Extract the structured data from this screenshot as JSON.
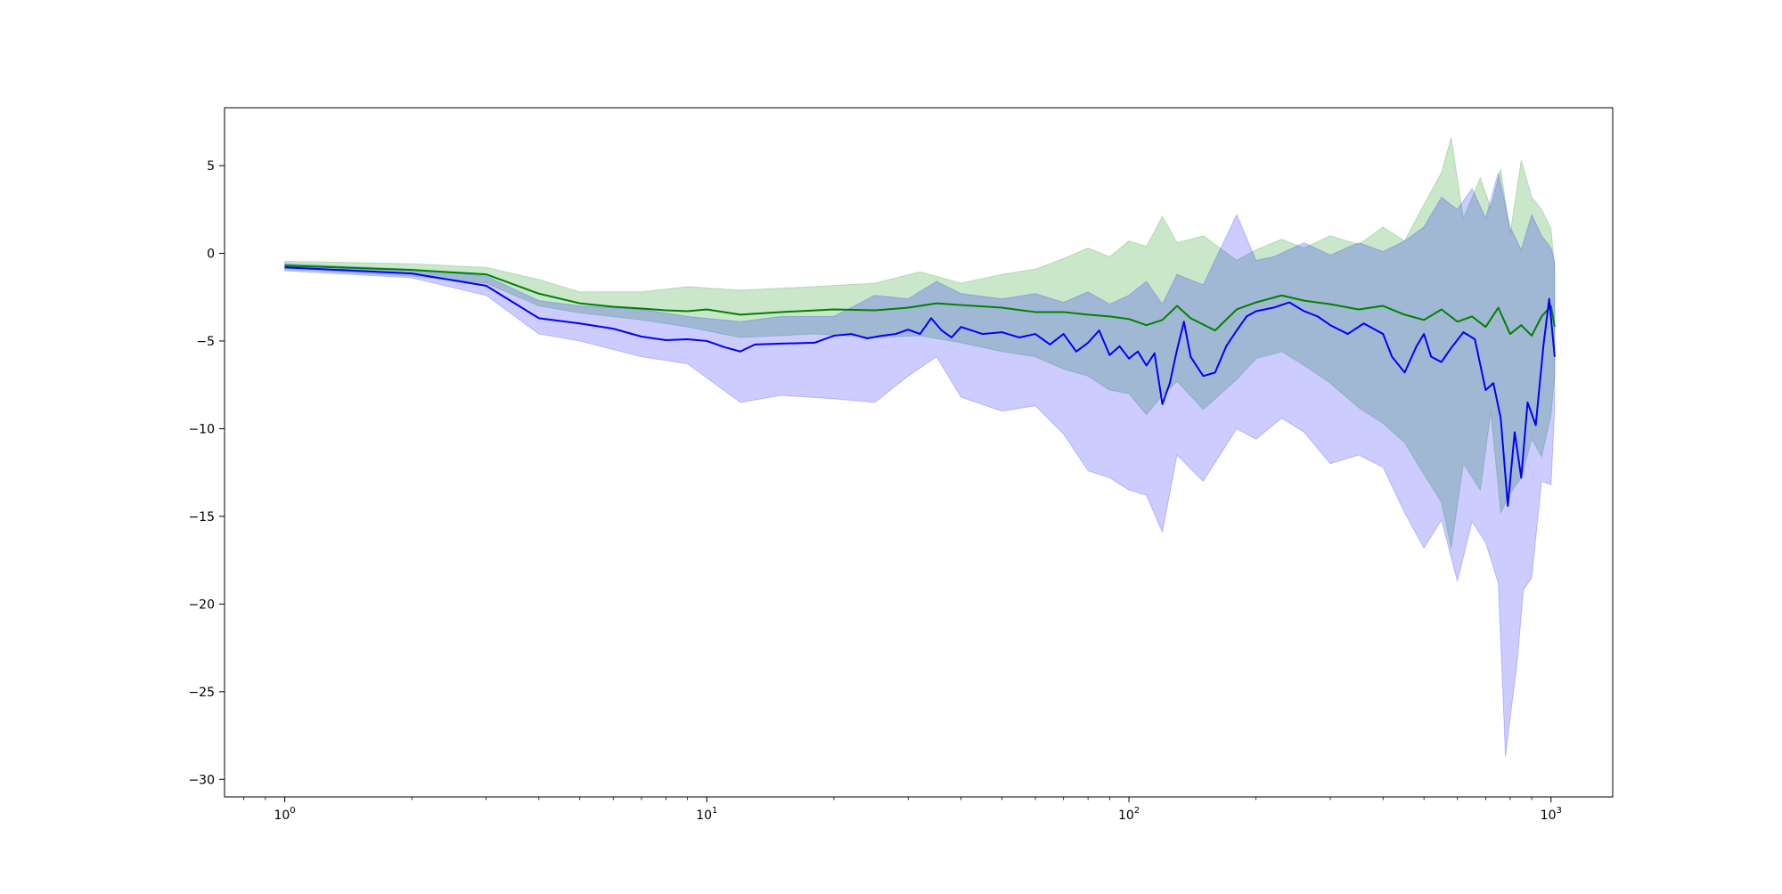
{
  "chart_data": {
    "type": "line",
    "title": "",
    "xlabel": "",
    "ylabel": "",
    "xscale": "log",
    "xlim": [
      0.72,
      1400
    ],
    "ylim": [
      -31,
      8.3
    ],
    "grid": false,
    "legend": "none",
    "x_ticks": [
      {
        "base": "10",
        "exp": "0",
        "value": 1
      },
      {
        "base": "10",
        "exp": "1",
        "value": 10
      },
      {
        "base": "10",
        "exp": "2",
        "value": 100
      },
      {
        "base": "10",
        "exp": "3",
        "value": 1000
      }
    ],
    "y_ticks": [
      {
        "label": "5",
        "value": 5
      },
      {
        "label": "0",
        "value": 0
      },
      {
        "label": "−5",
        "value": -5
      },
      {
        "label": "−10",
        "value": -10
      },
      {
        "label": "−15",
        "value": -15
      },
      {
        "label": "−20",
        "value": -20
      },
      {
        "label": "−25",
        "value": -25
      },
      {
        "label": "−30",
        "value": -30
      }
    ],
    "series": [
      {
        "color": "#008000",
        "band_color": "#2ca02c",
        "band_opacity": 0.25,
        "points": [
          [
            1,
            -0.7
          ],
          [
            2,
            -0.95
          ],
          [
            3,
            -1.2
          ],
          [
            4,
            -2.3
          ],
          [
            5,
            -2.85
          ],
          [
            6,
            -3.05
          ],
          [
            7,
            -3.15
          ],
          [
            8,
            -3.25
          ],
          [
            9,
            -3.3
          ],
          [
            10,
            -3.2
          ],
          [
            12,
            -3.5
          ],
          [
            15,
            -3.35
          ],
          [
            20,
            -3.2
          ],
          [
            25,
            -3.25
          ],
          [
            30,
            -3.1
          ],
          [
            35,
            -2.85
          ],
          [
            40,
            -2.95
          ],
          [
            50,
            -3.1
          ],
          [
            60,
            -3.35
          ],
          [
            70,
            -3.35
          ],
          [
            80,
            -3.5
          ],
          [
            90,
            -3.6
          ],
          [
            100,
            -3.75
          ],
          [
            110,
            -4.1
          ],
          [
            120,
            -3.8
          ],
          [
            130,
            -3.0
          ],
          [
            140,
            -3.7
          ],
          [
            160,
            -4.4
          ],
          [
            180,
            -3.2
          ],
          [
            200,
            -2.8
          ],
          [
            230,
            -2.4
          ],
          [
            260,
            -2.7
          ],
          [
            300,
            -2.9
          ],
          [
            350,
            -3.2
          ],
          [
            400,
            -3.0
          ],
          [
            450,
            -3.5
          ],
          [
            500,
            -3.8
          ],
          [
            550,
            -3.2
          ],
          [
            600,
            -3.9
          ],
          [
            650,
            -3.6
          ],
          [
            700,
            -4.2
          ],
          [
            750,
            -3.1
          ],
          [
            800,
            -4.6
          ],
          [
            850,
            -4.1
          ],
          [
            900,
            -4.7
          ],
          [
            950,
            -3.6
          ],
          [
            1000,
            -3.0
          ],
          [
            1020,
            -4.2
          ]
        ],
        "upper": [
          [
            1,
            -0.45
          ],
          [
            2,
            -0.6
          ],
          [
            3,
            -0.8
          ],
          [
            4,
            -1.5
          ],
          [
            5,
            -2.2
          ],
          [
            7,
            -2.2
          ],
          [
            9,
            -1.9
          ],
          [
            12,
            -2.1
          ],
          [
            18,
            -1.9
          ],
          [
            25,
            -1.7
          ],
          [
            32,
            -1.05
          ],
          [
            40,
            -1.7
          ],
          [
            50,
            -1.2
          ],
          [
            60,
            -0.9
          ],
          [
            70,
            -0.3
          ],
          [
            80,
            0.3
          ],
          [
            90,
            -0.2
          ],
          [
            100,
            0.7
          ],
          [
            110,
            0.4
          ],
          [
            120,
            2.1
          ],
          [
            130,
            0.6
          ],
          [
            150,
            1.0
          ],
          [
            180,
            -0.4
          ],
          [
            200,
            0.2
          ],
          [
            230,
            0.8
          ],
          [
            260,
            0.3
          ],
          [
            300,
            1.0
          ],
          [
            350,
            0.5
          ],
          [
            400,
            1.5
          ],
          [
            450,
            0.7
          ],
          [
            500,
            2.8
          ],
          [
            550,
            4.6
          ],
          [
            580,
            6.6
          ],
          [
            620,
            2.0
          ],
          [
            680,
            4.3
          ],
          [
            720,
            2.6
          ],
          [
            760,
            4.8
          ],
          [
            800,
            1.1
          ],
          [
            850,
            5.3
          ],
          [
            900,
            3.2
          ],
          [
            950,
            2.5
          ],
          [
            1000,
            1.4
          ],
          [
            1020,
            -0.8
          ]
        ],
        "lower": [
          [
            1,
            -0.9
          ],
          [
            2,
            -1.3
          ],
          [
            3,
            -1.7
          ],
          [
            4,
            -3.0
          ],
          [
            5,
            -3.4
          ],
          [
            7,
            -3.8
          ],
          [
            9,
            -4.2
          ],
          [
            12,
            -4.8
          ],
          [
            18,
            -4.6
          ],
          [
            25,
            -4.8
          ],
          [
            32,
            -4.7
          ],
          [
            40,
            -5.1
          ],
          [
            50,
            -5.6
          ],
          [
            60,
            -5.9
          ],
          [
            70,
            -6.6
          ],
          [
            80,
            -7.0
          ],
          [
            90,
            -7.8
          ],
          [
            100,
            -8.0
          ],
          [
            110,
            -9.2
          ],
          [
            120,
            -8.1
          ],
          [
            130,
            -7.3
          ],
          [
            150,
            -8.9
          ],
          [
            180,
            -7.2
          ],
          [
            200,
            -6.0
          ],
          [
            230,
            -5.6
          ],
          [
            260,
            -6.4
          ],
          [
            300,
            -7.4
          ],
          [
            350,
            -8.8
          ],
          [
            400,
            -9.7
          ],
          [
            450,
            -10.8
          ],
          [
            500,
            -12.6
          ],
          [
            550,
            -14.2
          ],
          [
            580,
            -16.8
          ],
          [
            620,
            -12.0
          ],
          [
            680,
            -13.5
          ],
          [
            720,
            -9.0
          ],
          [
            760,
            -14.8
          ],
          [
            800,
            -13.7
          ],
          [
            850,
            -12.8
          ],
          [
            900,
            -10.6
          ],
          [
            950,
            -11.6
          ],
          [
            1000,
            -9.2
          ],
          [
            1020,
            -6.9
          ]
        ]
      },
      {
        "color": "#0000ff",
        "band_color": "#0000ff",
        "band_opacity": 0.2,
        "points": [
          [
            1,
            -0.8
          ],
          [
            2,
            -1.15
          ],
          [
            3,
            -1.85
          ],
          [
            4,
            -3.7
          ],
          [
            5,
            -4.0
          ],
          [
            6,
            -4.3
          ],
          [
            7,
            -4.75
          ],
          [
            8,
            -4.95
          ],
          [
            9,
            -4.9
          ],
          [
            10,
            -5.0
          ],
          [
            11,
            -5.35
          ],
          [
            12,
            -5.6
          ],
          [
            13,
            -5.2
          ],
          [
            15,
            -5.15
          ],
          [
            18,
            -5.1
          ],
          [
            20,
            -4.7
          ],
          [
            22,
            -4.6
          ],
          [
            24,
            -4.85
          ],
          [
            26,
            -4.7
          ],
          [
            28,
            -4.6
          ],
          [
            30,
            -4.35
          ],
          [
            32,
            -4.6
          ],
          [
            34,
            -3.7
          ],
          [
            36,
            -4.4
          ],
          [
            38,
            -4.8
          ],
          [
            40,
            -4.2
          ],
          [
            45,
            -4.6
          ],
          [
            50,
            -4.5
          ],
          [
            55,
            -4.8
          ],
          [
            60,
            -4.6
          ],
          [
            65,
            -5.2
          ],
          [
            70,
            -4.6
          ],
          [
            75,
            -5.6
          ],
          [
            80,
            -5.1
          ],
          [
            85,
            -4.4
          ],
          [
            90,
            -5.8
          ],
          [
            95,
            -5.3
          ],
          [
            100,
            -6.0
          ],
          [
            105,
            -5.6
          ],
          [
            110,
            -6.4
          ],
          [
            115,
            -5.7
          ],
          [
            120,
            -8.6
          ],
          [
            125,
            -7.4
          ],
          [
            130,
            -5.5
          ],
          [
            135,
            -3.9
          ],
          [
            140,
            -5.9
          ],
          [
            150,
            -7.0
          ],
          [
            160,
            -6.8
          ],
          [
            170,
            -5.3
          ],
          [
            180,
            -4.4
          ],
          [
            190,
            -3.6
          ],
          [
            200,
            -3.3
          ],
          [
            220,
            -3.1
          ],
          [
            240,
            -2.8
          ],
          [
            260,
            -3.3
          ],
          [
            280,
            -3.6
          ],
          [
            300,
            -4.1
          ],
          [
            330,
            -4.6
          ],
          [
            360,
            -4.0
          ],
          [
            400,
            -4.6
          ],
          [
            420,
            -5.9
          ],
          [
            450,
            -6.8
          ],
          [
            480,
            -5.3
          ],
          [
            500,
            -4.6
          ],
          [
            520,
            -5.9
          ],
          [
            550,
            -6.2
          ],
          [
            580,
            -5.4
          ],
          [
            620,
            -4.5
          ],
          [
            660,
            -4.9
          ],
          [
            700,
            -7.8
          ],
          [
            730,
            -7.4
          ],
          [
            760,
            -9.4
          ],
          [
            790,
            -14.4
          ],
          [
            820,
            -10.2
          ],
          [
            850,
            -12.8
          ],
          [
            880,
            -8.5
          ],
          [
            920,
            -9.8
          ],
          [
            960,
            -5.2
          ],
          [
            990,
            -2.6
          ],
          [
            1020,
            -5.9
          ]
        ],
        "upper": [
          [
            1,
            -0.6
          ],
          [
            2,
            -0.9
          ],
          [
            3,
            -1.3
          ],
          [
            4,
            -2.7
          ],
          [
            5,
            -3.0
          ],
          [
            7,
            -3.2
          ],
          [
            9,
            -3.6
          ],
          [
            12,
            -3.9
          ],
          [
            15,
            -3.6
          ],
          [
            20,
            -3.6
          ],
          [
            25,
            -2.4
          ],
          [
            30,
            -2.6
          ],
          [
            35,
            -1.6
          ],
          [
            40,
            -2.3
          ],
          [
            50,
            -2.6
          ],
          [
            60,
            -2.3
          ],
          [
            70,
            -2.8
          ],
          [
            80,
            -2.2
          ],
          [
            90,
            -2.9
          ],
          [
            100,
            -2.4
          ],
          [
            110,
            -1.6
          ],
          [
            120,
            -2.9
          ],
          [
            130,
            -1.2
          ],
          [
            150,
            -1.8
          ],
          [
            180,
            2.2
          ],
          [
            200,
            -0.4
          ],
          [
            220,
            -0.2
          ],
          [
            260,
            0.6
          ],
          [
            300,
            -0.1
          ],
          [
            350,
            0.6
          ],
          [
            400,
            0.1
          ],
          [
            450,
            0.7
          ],
          [
            500,
            1.5
          ],
          [
            550,
            3.2
          ],
          [
            600,
            2.5
          ],
          [
            650,
            3.7
          ],
          [
            700,
            2.0
          ],
          [
            750,
            4.6
          ],
          [
            800,
            1.5
          ],
          [
            850,
            0.2
          ],
          [
            900,
            2.2
          ],
          [
            950,
            1.0
          ],
          [
            1000,
            0.3
          ],
          [
            1020,
            -0.5
          ]
        ],
        "lower": [
          [
            1,
            -1.0
          ],
          [
            2,
            -1.4
          ],
          [
            3,
            -2.4
          ],
          [
            4,
            -4.6
          ],
          [
            5,
            -5.0
          ],
          [
            7,
            -5.9
          ],
          [
            9,
            -6.3
          ],
          [
            12,
            -8.5
          ],
          [
            15,
            -8.1
          ],
          [
            20,
            -8.3
          ],
          [
            25,
            -8.5
          ],
          [
            30,
            -7.0
          ],
          [
            35,
            -5.9
          ],
          [
            40,
            -8.2
          ],
          [
            50,
            -9.0
          ],
          [
            60,
            -8.7
          ],
          [
            70,
            -10.3
          ],
          [
            80,
            -12.4
          ],
          [
            90,
            -12.8
          ],
          [
            100,
            -13.5
          ],
          [
            110,
            -13.8
          ],
          [
            120,
            -15.9
          ],
          [
            130,
            -11.5
          ],
          [
            150,
            -13.0
          ],
          [
            180,
            -10.0
          ],
          [
            200,
            -10.6
          ],
          [
            230,
            -9.4
          ],
          [
            260,
            -10.2
          ],
          [
            300,
            -12.0
          ],
          [
            350,
            -11.5
          ],
          [
            400,
            -12.2
          ],
          [
            450,
            -14.8
          ],
          [
            500,
            -16.8
          ],
          [
            550,
            -15.2
          ],
          [
            600,
            -18.7
          ],
          [
            650,
            -15.3
          ],
          [
            700,
            -16.5
          ],
          [
            750,
            -18.8
          ],
          [
            780,
            -28.7
          ],
          [
            800,
            -26.5
          ],
          [
            830,
            -23.5
          ],
          [
            860,
            -19.2
          ],
          [
            900,
            -18.5
          ],
          [
            950,
            -13.0
          ],
          [
            1000,
            -13.2
          ],
          [
            1020,
            -8.8
          ]
        ]
      }
    ]
  }
}
